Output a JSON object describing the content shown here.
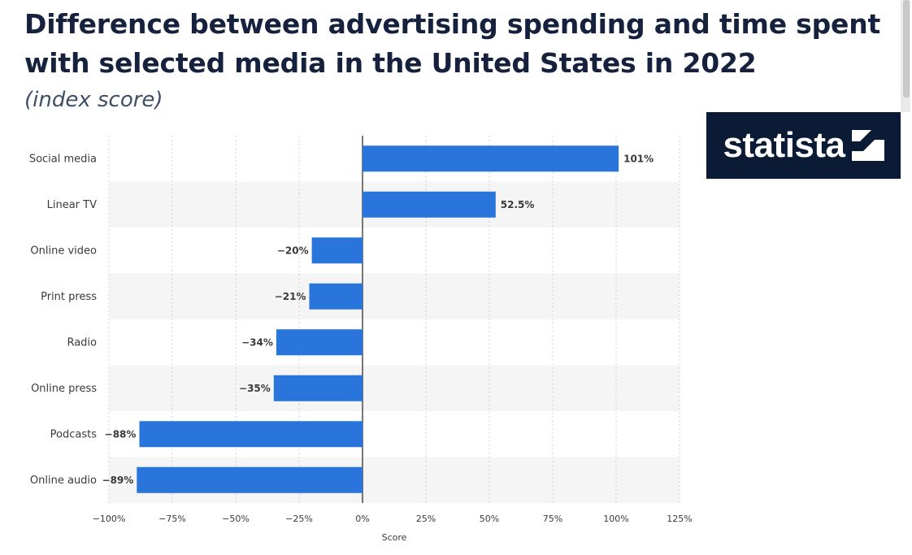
{
  "header": {
    "title": "Difference between advertising spending and time spent with selected media in the United States in 2022",
    "subtitle": "(index score)"
  },
  "brand": {
    "logo_text": "statista",
    "logo_bg": "#0b1a35"
  },
  "colors": {
    "bar": "#2a75dc",
    "band": "#f5f5f5",
    "zero_line": "#222222",
    "grid": "#d0d0d0"
  },
  "chart_data": {
    "type": "bar",
    "orientation": "horizontal",
    "categories": [
      "Social media",
      "Linear TV",
      "Online video",
      "Print press",
      "Radio",
      "Online press",
      "Podcasts",
      "Online audio"
    ],
    "values": [
      101,
      52.5,
      -20,
      -21,
      -34,
      -35,
      -88,
      -89
    ],
    "value_labels": [
      "101%",
      "52.5%",
      "−20%",
      "−21%",
      "−34%",
      "−35%",
      "−88%",
      "−89%"
    ],
    "xlabel": "Score",
    "xlim": [
      -100,
      125
    ],
    "xticks": [
      -100,
      -75,
      -50,
      -25,
      0,
      25,
      50,
      75,
      100,
      125
    ],
    "xtick_labels": [
      "−100%",
      "−75%",
      "−50%",
      "−25%",
      "0%",
      "25%",
      "50%",
      "75%",
      "100%",
      "125%"
    ],
    "grid": true,
    "legend": "none"
  }
}
